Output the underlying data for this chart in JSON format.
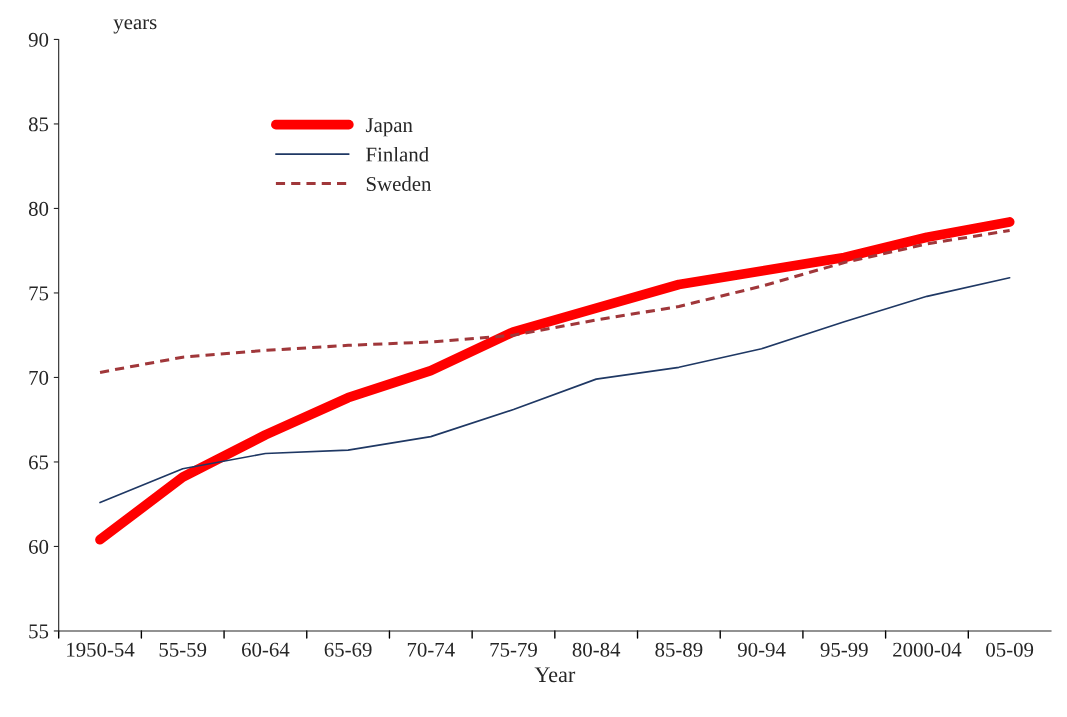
{
  "chart_data": {
    "type": "line",
    "xlabel": "Year",
    "ylabel": "years",
    "categories": [
      "1950-54",
      "55-59",
      "60-64",
      "65-69",
      "70-74",
      "75-79",
      "80-84",
      "85-89",
      "90-94",
      "95-99",
      "2000-04",
      "05-09"
    ],
    "series": [
      {
        "name": "Japan",
        "color": "#ff0000",
        "line_style": "solid",
        "values": [
          60.4,
          64.1,
          66.6,
          68.8,
          70.4,
          72.7,
          74.1,
          75.5,
          76.3,
          77.1,
          78.3,
          79.2
        ]
      },
      {
        "name": "Finland",
        "color": "#1f3864",
        "line_style": "solid",
        "values": [
          62.6,
          64.6,
          65.5,
          65.7,
          66.5,
          68.1,
          69.9,
          70.6,
          71.7,
          73.3,
          74.8,
          75.9
        ]
      },
      {
        "name": "Sweden",
        "color": "#a0373a",
        "line_style": "dashed",
        "values": [
          70.3,
          71.2,
          71.6,
          71.9,
          72.1,
          72.5,
          73.4,
          74.2,
          75.4,
          76.8,
          77.9,
          78.7
        ]
      }
    ],
    "ylim": [
      55,
      90
    ],
    "yticks": [
      55,
      60,
      65,
      70,
      75,
      80,
      85,
      90
    ],
    "grid": false,
    "legend": "top left",
    "marker": "none"
  }
}
